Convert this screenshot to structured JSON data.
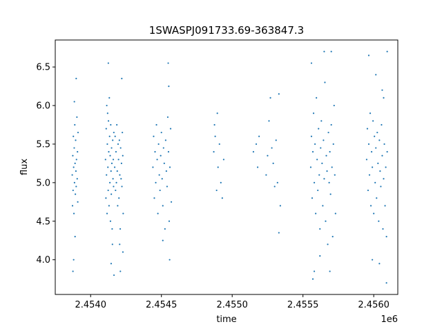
{
  "chart_data": {
    "type": "scatter",
    "title": "1SWASPJ091733.69-363847.3",
    "xlabel": "time",
    "ylabel": "flux",
    "x_offset_label": "1e6",
    "xlim": [
      2453750,
      2456170
    ],
    "ylim": [
      3.55,
      6.85
    ],
    "x_ticks": [
      2454000,
      2454500,
      2455000,
      2455500,
      2456000
    ],
    "x_tick_labels": [
      "2.4540",
      "2.4545",
      "2.4550",
      "2.4555",
      "2.4560"
    ],
    "y_ticks": [
      4.0,
      4.5,
      5.0,
      5.5,
      6.0,
      6.5
    ],
    "y_tick_labels": [
      "4.0",
      "4.5",
      "5.0",
      "5.5",
      "6.0",
      "6.5"
    ],
    "grid": false,
    "marker_color": "#1f77b4",
    "series": [
      {
        "points": [
          [
            2453870,
            5.1
          ],
          [
            2453872,
            4.7
          ],
          [
            2453874,
            5.35
          ],
          [
            2453876,
            4.9
          ],
          [
            2453878,
            5.6
          ],
          [
            2453880,
            5.2
          ],
          [
            2453882,
            4.6
          ],
          [
            2453884,
            5.45
          ],
          [
            2453886,
            5.0
          ],
          [
            2453888,
            5.75
          ],
          [
            2453890,
            5.25
          ],
          [
            2453892,
            4.85
          ],
          [
            2453894,
            5.55
          ],
          [
            2453896,
            5.15
          ],
          [
            2453898,
            4.95
          ],
          [
            2453885,
            6.05
          ],
          [
            2453900,
            5.3
          ],
          [
            2453903,
            5.85
          ],
          [
            2453905,
            5.05
          ],
          [
            2453907,
            5.4
          ],
          [
            2453909,
            4.75
          ],
          [
            2453911,
            5.65
          ],
          [
            2453880,
            4.0
          ],
          [
            2453890,
            4.3
          ],
          [
            2453898,
            6.35
          ],
          [
            2453875,
            3.85
          ],
          [
            2454105,
            5.3
          ],
          [
            2454108,
            4.8
          ],
          [
            2454110,
            5.7
          ],
          [
            2454112,
            5.1
          ],
          [
            2454114,
            6.0
          ],
          [
            2454116,
            4.6
          ],
          [
            2454118,
            5.5
          ],
          [
            2454120,
            5.9
          ],
          [
            2454122,
            5.2
          ],
          [
            2454124,
            4.9
          ],
          [
            2454126,
            5.8
          ],
          [
            2454128,
            5.4
          ],
          [
            2454130,
            4.7
          ],
          [
            2454132,
            6.1
          ],
          [
            2454134,
            5.6
          ],
          [
            2454136,
            5.0
          ],
          [
            2454138,
            5.35
          ],
          [
            2454140,
            4.5
          ],
          [
            2454142,
            5.75
          ],
          [
            2454144,
            5.15
          ],
          [
            2454146,
            4.85
          ],
          [
            2454148,
            5.45
          ],
          [
            2454150,
            5.25
          ],
          [
            2454152,
            4.4
          ],
          [
            2454154,
            4.2
          ],
          [
            2454156,
            5.55
          ],
          [
            2454158,
            5.05
          ],
          [
            2454160,
            5.3
          ],
          [
            2454162,
            4.95
          ],
          [
            2454164,
            5.65
          ],
          [
            2454125,
            6.55
          ],
          [
            2454145,
            3.95
          ],
          [
            2454165,
            3.8
          ],
          [
            2454170,
            5.2
          ],
          [
            2454173,
            5.6
          ],
          [
            2454176,
            4.9
          ],
          [
            2454179,
            5.4
          ],
          [
            2454182,
            5.0
          ],
          [
            2454185,
            5.75
          ],
          [
            2454188,
            5.15
          ],
          [
            2454191,
            4.7
          ],
          [
            2454194,
            5.5
          ],
          [
            2454197,
            5.3
          ],
          [
            2454200,
            4.8
          ],
          [
            2454203,
            5.55
          ],
          [
            2454206,
            5.1
          ],
          [
            2454209,
            4.4
          ],
          [
            2454212,
            5.45
          ],
          [
            2454215,
            5.05
          ],
          [
            2454218,
            5.25
          ],
          [
            2454221,
            4.95
          ],
          [
            2454224,
            5.65
          ],
          [
            2454227,
            5.35
          ],
          [
            2454230,
            4.6
          ],
          [
            2454210,
            3.85
          ],
          [
            2454220,
            6.35
          ],
          [
            2454205,
            4.2
          ],
          [
            2454228,
            4.1
          ],
          [
            2454440,
            5.2
          ],
          [
            2454445,
            5.6
          ],
          [
            2454450,
            4.8
          ],
          [
            2454455,
            5.4
          ],
          [
            2454460,
            5.0
          ],
          [
            2454465,
            5.75
          ],
          [
            2454470,
            5.3
          ],
          [
            2454475,
            4.6
          ],
          [
            2454480,
            5.5
          ],
          [
            2454485,
            5.1
          ],
          [
            2454490,
            4.9
          ],
          [
            2454495,
            5.35
          ],
          [
            2454500,
            5.65
          ],
          [
            2454505,
            5.05
          ],
          [
            2454510,
            4.7
          ],
          [
            2454515,
            5.45
          ],
          [
            2454520,
            5.25
          ],
          [
            2454525,
            4.4
          ],
          [
            2454530,
            5.55
          ],
          [
            2454535,
            5.15
          ],
          [
            2454540,
            4.95
          ],
          [
            2454545,
            5.85
          ],
          [
            2454550,
            5.4
          ],
          [
            2454555,
            4.5
          ],
          [
            2454560,
            5.2
          ],
          [
            2454565,
            5.7
          ],
          [
            2454570,
            4.75
          ],
          [
            2454548,
            6.55
          ],
          [
            2454558,
            4.0
          ],
          [
            2454552,
            6.25
          ],
          [
            2454510,
            4.25
          ],
          [
            2454870,
            5.4
          ],
          [
            2454880,
            5.6
          ],
          [
            2454890,
            4.9
          ],
          [
            2454900,
            5.2
          ],
          [
            2454910,
            5.5
          ],
          [
            2454920,
            5.0
          ],
          [
            2454930,
            4.8
          ],
          [
            2454940,
            5.3
          ],
          [
            2454875,
            5.75
          ],
          [
            2454895,
            5.9
          ],
          [
            2455150,
            5.4
          ],
          [
            2455170,
            5.5
          ],
          [
            2455180,
            5.2
          ],
          [
            2455190,
            5.6
          ],
          [
            2455240,
            5.1
          ],
          [
            2455250,
            5.35
          ],
          [
            2455260,
            5.8
          ],
          [
            2455270,
            6.1
          ],
          [
            2455280,
            5.45
          ],
          [
            2455290,
            5.25
          ],
          [
            2455300,
            4.95
          ],
          [
            2455310,
            5.55
          ],
          [
            2455320,
            5.0
          ],
          [
            2455330,
            6.15
          ],
          [
            2455340,
            4.7
          ],
          [
            2455330,
            4.35
          ],
          [
            2455555,
            5.2
          ],
          [
            2455560,
            5.6
          ],
          [
            2455565,
            4.8
          ],
          [
            2455570,
            5.4
          ],
          [
            2455575,
            5.9
          ],
          [
            2455580,
            5.0
          ],
          [
            2455585,
            5.5
          ],
          [
            2455590,
            4.6
          ],
          [
            2455595,
            6.1
          ],
          [
            2455600,
            5.3
          ],
          [
            2455605,
            4.9
          ],
          [
            2455610,
            5.7
          ],
          [
            2455615,
            5.1
          ],
          [
            2455620,
            4.4
          ],
          [
            2455625,
            5.45
          ],
          [
            2455630,
            5.8
          ],
          [
            2455635,
            5.25
          ],
          [
            2455640,
            4.7
          ],
          [
            2455645,
            5.55
          ],
          [
            2455650,
            5.05
          ],
          [
            2455655,
            6.3
          ],
          [
            2455660,
            4.5
          ],
          [
            2455665,
            5.35
          ],
          [
            2455670,
            5.15
          ],
          [
            2455675,
            4.2
          ],
          [
            2455680,
            5.65
          ],
          [
            2455685,
            5.0
          ],
          [
            2455690,
            5.4
          ],
          [
            2455695,
            4.85
          ],
          [
            2455700,
            5.75
          ],
          [
            2455705,
            5.2
          ],
          [
            2455710,
            4.3
          ],
          [
            2455715,
            5.5
          ],
          [
            2455720,
            6.0
          ],
          [
            2455725,
            5.1
          ],
          [
            2455730,
            4.6
          ],
          [
            2455560,
            6.55
          ],
          [
            2455650,
            6.7
          ],
          [
            2455700,
            6.7
          ],
          [
            2455580,
            3.85
          ],
          [
            2455570,
            3.75
          ],
          [
            2455690,
            3.85
          ],
          [
            2455620,
            4.05
          ],
          [
            2455950,
            5.3
          ],
          [
            2455955,
            5.7
          ],
          [
            2455960,
            4.9
          ],
          [
            2455965,
            5.5
          ],
          [
            2455970,
            5.1
          ],
          [
            2455975,
            5.9
          ],
          [
            2455980,
            4.7
          ],
          [
            2455985,
            5.4
          ],
          [
            2455990,
            5.2
          ],
          [
            2455995,
            5.8
          ],
          [
            2456000,
            4.6
          ],
          [
            2456005,
            5.6
          ],
          [
            2456010,
            5.0
          ],
          [
            2456015,
            5.45
          ],
          [
            2456020,
            4.8
          ],
          [
            2456025,
            5.65
          ],
          [
            2456030,
            5.25
          ],
          [
            2456035,
            4.5
          ],
          [
            2456040,
            5.55
          ],
          [
            2456045,
            5.15
          ],
          [
            2456050,
            4.95
          ],
          [
            2456055,
            5.75
          ],
          [
            2456060,
            5.35
          ],
          [
            2456065,
            4.4
          ],
          [
            2456070,
            5.05
          ],
          [
            2456075,
            5.5
          ],
          [
            2456080,
            4.7
          ],
          [
            2456085,
            5.2
          ],
          [
            2456090,
            4.3
          ],
          [
            2456095,
            5.4
          ],
          [
            2455965,
            6.65
          ],
          [
            2456015,
            6.4
          ],
          [
            2456070,
            6.1
          ],
          [
            2456060,
            6.2
          ],
          [
            2455990,
            4.0
          ],
          [
            2456090,
            3.7
          ],
          [
            2456040,
            3.95
          ],
          [
            2456095,
            6.7
          ]
        ]
      }
    ]
  }
}
